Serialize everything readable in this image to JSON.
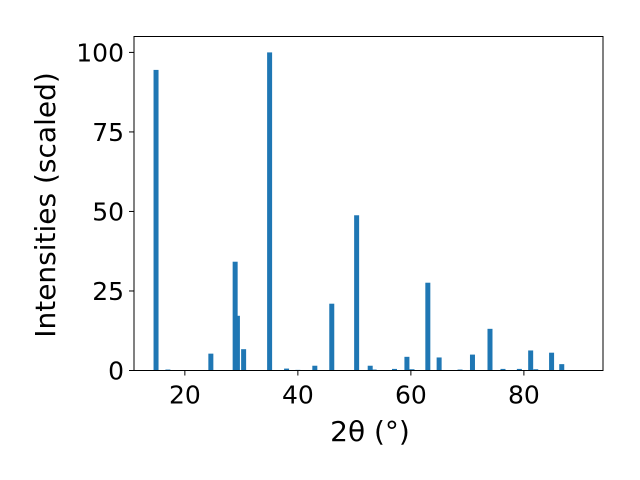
{
  "chart_data": {
    "type": "bar",
    "xlabel": "2θ (°)",
    "ylabel": "Intensities (scaled)",
    "xlim": [
      11,
      94
    ],
    "ylim": [
      0,
      105
    ],
    "xticks": [
      20,
      40,
      60,
      80
    ],
    "yticks": [
      0,
      25,
      50,
      75,
      100
    ],
    "xtick_labels": [
      "20",
      "40",
      "60",
      "80"
    ],
    "ytick_labels": [
      "0",
      "25",
      "50",
      "75",
      "100"
    ],
    "bar_color": "#1f77b4",
    "grid": false,
    "x": [
      14.9,
      17.0,
      24.6,
      28.9,
      29.3,
      30.4,
      35.0,
      38.0,
      40.0,
      43.0,
      46.0,
      50.4,
      52.8,
      53.5,
      57.1,
      59.3,
      60.2,
      63.0,
      65.0,
      68.7,
      70.9,
      74.0,
      76.3,
      79.2,
      81.2,
      82.1,
      84.9,
      86.7
    ],
    "values": [
      94.5,
      0.3,
      5.3,
      34.2,
      17.2,
      6.7,
      100.0,
      0.6,
      0.2,
      1.5,
      21.0,
      48.8,
      1.5,
      0.3,
      0.5,
      4.3,
      0.4,
      27.6,
      4.1,
      0.3,
      5.0,
      13.1,
      0.5,
      0.5,
      6.3,
      0.4,
      5.6,
      2.0
    ]
  }
}
